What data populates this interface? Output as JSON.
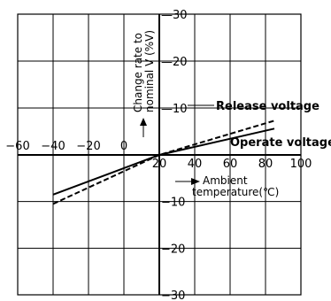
{
  "chart_data": {
    "type": "line",
    "xlabel_lines": [
      "Ambient",
      "temperature(℃)"
    ],
    "ylabel_lines": [
      "Change rate to",
      "nominal V (%V)"
    ],
    "xlim": [
      -60,
      100
    ],
    "ylim": [
      -30,
      30
    ],
    "x_tick_labels": [
      "−60",
      "−40",
      "−20",
      "0",
      "20",
      "40",
      "60",
      "80",
      "100"
    ],
    "x_tick_values": [
      -60,
      -40,
      -20,
      0,
      20,
      40,
      60,
      80,
      100
    ],
    "y_tick_labels": [
      "30",
      "20",
      "10",
      "−10",
      "−20",
      "−30"
    ],
    "y_tick_values": [
      30,
      20,
      10,
      -10,
      -20,
      -30
    ],
    "grid": true,
    "series": [
      {
        "name": "Operate voltage",
        "style": "solid",
        "x": [
          -40,
          20,
          85
        ],
        "y": [
          -8.5,
          0,
          5.6
        ]
      },
      {
        "name": "Release voltage",
        "style": "dashed",
        "x": [
          -40,
          20,
          85
        ],
        "y": [
          -10.5,
          0,
          7.3
        ]
      }
    ]
  }
}
